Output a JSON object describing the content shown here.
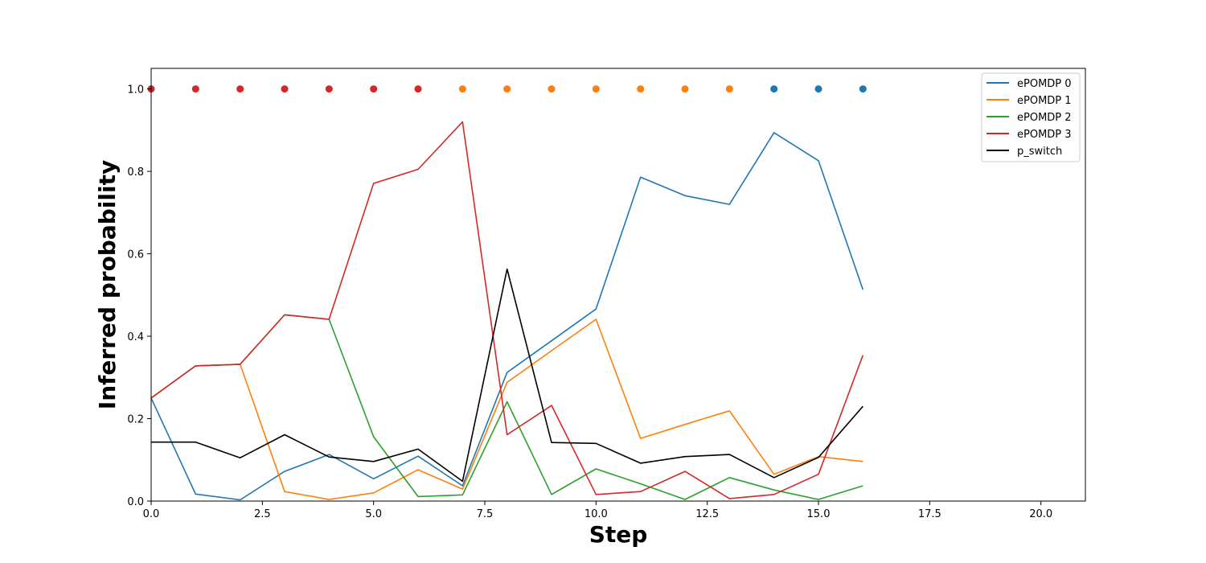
{
  "chart_data": {
    "type": "line",
    "xlabel": "Step",
    "ylabel": "Inferred probability",
    "xlim": [
      0,
      21
    ],
    "ylim": [
      0,
      1.05
    ],
    "xticks": [
      0,
      2.5,
      5,
      7.5,
      10,
      12.5,
      15,
      17.5,
      20
    ],
    "xtick_labels": [
      "0.0",
      "2.5",
      "5.0",
      "7.5",
      "10.0",
      "12.5",
      "15.0",
      "17.5",
      "20.0"
    ],
    "yticks": [
      0,
      0.2,
      0.4,
      0.6,
      0.8,
      1.0
    ],
    "ytick_labels": [
      "0.0",
      "0.2",
      "0.4",
      "0.6",
      "0.8",
      "1.0"
    ],
    "grid": false,
    "legend_position": "top-right",
    "x": [
      0,
      1,
      2,
      3,
      4,
      5,
      6,
      7,
      8,
      9,
      10,
      11,
      12,
      13,
      14,
      15,
      16
    ],
    "series": [
      {
        "name": "ePOMDP 0",
        "color": "#1f77b4",
        "values": [
          0.25,
          0.017,
          0.003,
          0.072,
          0.113,
          0.054,
          0.109,
          0.037,
          0.312,
          0.389,
          0.466,
          0.786,
          0.741,
          0.72,
          0.894,
          0.826,
          0.513
        ]
      },
      {
        "name": "ePOMDP 1",
        "color": "#ff7f0e",
        "values": [
          0.25,
          0.328,
          0.332,
          0.023,
          0.004,
          0.02,
          0.076,
          0.029,
          0.288,
          0.365,
          0.441,
          0.152,
          0.186,
          0.219,
          0.065,
          0.108,
          0.096
        ]
      },
      {
        "name": "ePOMDP 2",
        "color": "#2ca02c",
        "values": [
          0.25,
          0.328,
          0.332,
          0.452,
          0.441,
          0.156,
          0.011,
          0.015,
          0.241,
          0.016,
          0.078,
          0.042,
          0.004,
          0.057,
          0.027,
          0.004,
          0.037
        ]
      },
      {
        "name": "ePOMDP 3",
        "color": "#d62728",
        "values": [
          0.25,
          0.328,
          0.332,
          0.452,
          0.441,
          0.771,
          0.805,
          0.92,
          0.161,
          0.232,
          0.016,
          0.023,
          0.072,
          0.006,
          0.016,
          0.065,
          0.354
        ]
      },
      {
        "name": "p_switch",
        "color": "#000000",
        "values": [
          0.143,
          0.143,
          0.105,
          0.161,
          0.107,
          0.096,
          0.126,
          0.048,
          0.563,
          0.142,
          0.14,
          0.092,
          0.108,
          0.113,
          0.057,
          0.106,
          0.23
        ]
      }
    ],
    "markers": {
      "y": 1.0,
      "x": [
        0,
        1,
        2,
        3,
        4,
        5,
        6,
        7,
        8,
        9,
        10,
        11,
        12,
        13,
        14,
        15,
        16
      ],
      "colors": [
        "#d62728",
        "#d62728",
        "#d62728",
        "#d62728",
        "#d62728",
        "#d62728",
        "#d62728",
        "#ff7f0e",
        "#ff7f0e",
        "#ff7f0e",
        "#ff7f0e",
        "#ff7f0e",
        "#ff7f0e",
        "#ff7f0e",
        "#1f77b4",
        "#1f77b4",
        "#1f77b4"
      ]
    }
  }
}
